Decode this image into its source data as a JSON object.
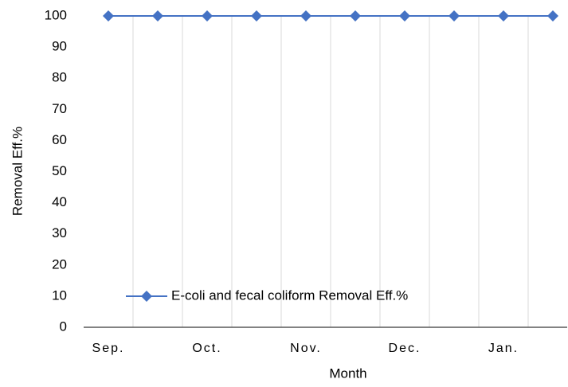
{
  "chart_data": {
    "type": "line",
    "categories": [
      "Sep.",
      null,
      "Oct.",
      null,
      "Nov.",
      null,
      "Dec.",
      null,
      "Jan.",
      null
    ],
    "series": [
      {
        "name": "E-coli and fecal coliform Removal Eff.%",
        "color": "#4472c4",
        "values": [
          100,
          100,
          100,
          100,
          100,
          100,
          100,
          100,
          100,
          100
        ]
      }
    ],
    "ylim": [
      0,
      100
    ],
    "yticks": [
      0,
      10,
      20,
      30,
      40,
      50,
      60,
      70,
      80,
      90,
      100
    ],
    "xlabel": "Month",
    "ylabel": "Removal Eff.%",
    "grid": true,
    "legend": "bottom"
  }
}
